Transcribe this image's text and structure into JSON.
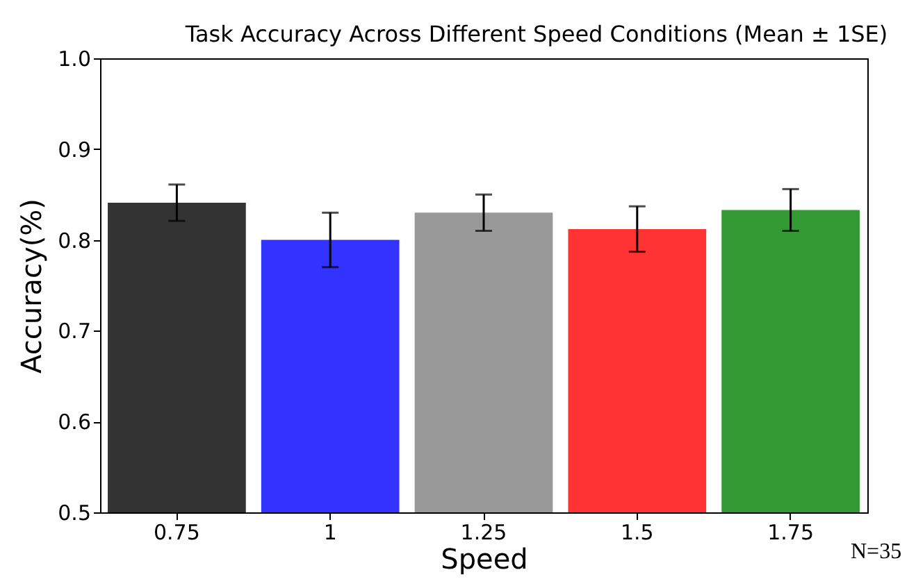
{
  "chart_data": {
    "type": "bar",
    "title": "Task Accuracy Across Different Speed Conditions (Mean ± 1SE)",
    "xlabel": "Speed",
    "ylabel": "Accuracy(%)",
    "categories": [
      "0.75",
      "1",
      "1.25",
      "1.5",
      "1.75"
    ],
    "values": [
      0.841,
      0.8,
      0.83,
      0.812,
      0.833
    ],
    "errors": [
      0.02,
      0.03,
      0.02,
      0.025,
      0.023
    ],
    "colors": [
      "#333333",
      "#3333ff",
      "#999999",
      "#ff3333",
      "#339933"
    ],
    "ylim": [
      0.5,
      1.0
    ],
    "yticks": [
      0.5,
      0.6,
      0.7,
      0.8,
      0.9,
      {
        "value": 1.0,
        "label": "1.0"
      }
    ],
    "annotations": [
      "N=35"
    ],
    "grid": false
  }
}
